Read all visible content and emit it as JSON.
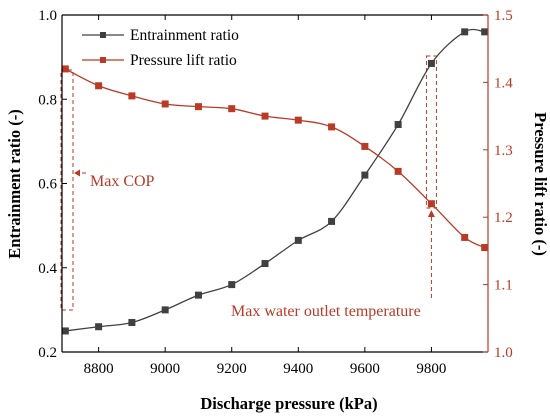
{
  "chart_data": {
    "type": "line",
    "x": [
      8700,
      8800,
      8900,
      9000,
      9100,
      9200,
      9300,
      9400,
      9500,
      9600,
      9700,
      9800,
      9900,
      9960
    ],
    "xlabel": "Discharge pressure (kPa)",
    "xlim": [
      8690,
      9970
    ],
    "xticks": [
      8800,
      9000,
      9200,
      9400,
      9600,
      9800
    ],
    "ylabel_left": "Entrainment ratio (-)",
    "ylim_left": [
      0.2,
      1.0
    ],
    "yticks_left": [
      "0.2",
      "0.4",
      "0.6",
      "0.8",
      "1.0"
    ],
    "ylabel_right": "Pressure lift ratio (-)",
    "ylim_right": [
      1.0,
      1.5
    ],
    "yticks_right": [
      "1.0",
      "1.1",
      "1.2",
      "1.3",
      "1.4",
      "1.5"
    ],
    "grid": false,
    "legend_position": "top-left",
    "series": [
      {
        "name": "Entrainment ratio",
        "axis": "left",
        "color": "#404040",
        "values": [
          0.25,
          0.26,
          0.27,
          0.3,
          0.335,
          0.36,
          0.41,
          0.465,
          0.51,
          0.62,
          0.74,
          0.885,
          0.96,
          0.96
        ]
      },
      {
        "name": "Pressure lift ratio",
        "axis": "right",
        "color": "#b93a26",
        "values": [
          1.42,
          1.395,
          1.38,
          1.368,
          1.364,
          1.361,
          1.35,
          1.344,
          1.334,
          1.305,
          1.268,
          1.22,
          1.17,
          1.155
        ]
      }
    ],
    "annotations": [
      {
        "text": "Max COP",
        "x": 8705
      },
      {
        "text": "Max water outlet temperature",
        "x": 9800
      }
    ]
  },
  "colors": {
    "axis": "#000000",
    "right_axis": "#b93a26",
    "annotation": "#b93a26"
  }
}
